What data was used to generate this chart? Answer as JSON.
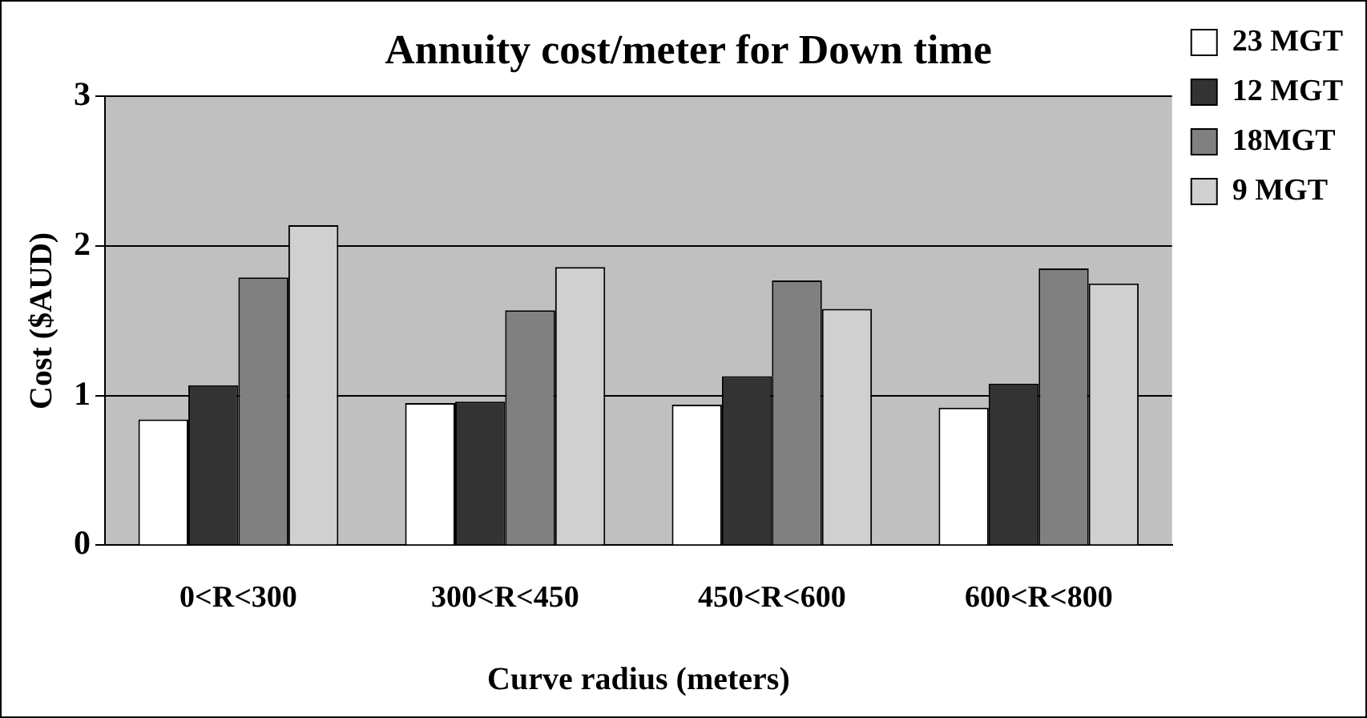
{
  "chart_data": {
    "type": "bar",
    "title": "Annuity cost/meter for Down time",
    "xlabel": "Curve radius (meters)",
    "ylabel": "Cost ($AUD)",
    "categories": [
      "0<R<300",
      "300<R<450",
      "450<R<600",
      "600<R<800"
    ],
    "series": [
      {
        "name": "23 MGT",
        "color": "#ffffff",
        "values": [
          0.84,
          0.95,
          0.94,
          0.92
        ]
      },
      {
        "name": "12 MGT",
        "color": "#333333",
        "values": [
          1.07,
          0.96,
          1.13,
          1.08
        ]
      },
      {
        "name": "18MGT",
        "color": "#808080",
        "values": [
          1.79,
          1.57,
          1.77,
          1.85
        ]
      },
      {
        "name": "9 MGT",
        "color": "#d0d0d0",
        "values": [
          2.14,
          1.86,
          1.58,
          1.75
        ]
      }
    ],
    "ylim": [
      0,
      3
    ],
    "yticks": [
      0,
      1,
      2,
      3
    ],
    "grid": "y",
    "legend": "top right"
  }
}
